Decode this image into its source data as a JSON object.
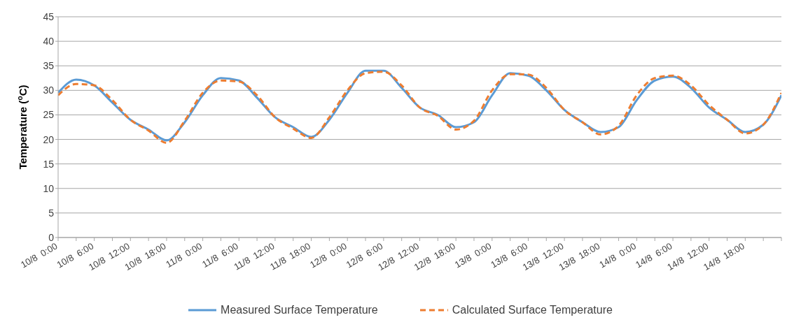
{
  "chart_data": {
    "type": "line",
    "ylabel": "Temperature ($^{o}$C)",
    "categories": [
      "10/8  0:00",
      null,
      "10/8  6:00",
      null,
      "10/8  12:00",
      null,
      "10/8  18:00",
      null,
      "11/8  0:00",
      null,
      "11/8  6:00",
      null,
      "11/8  12:00",
      null,
      "11/8  18:00",
      null,
      "12/8  0:00",
      null,
      "12/8  6:00",
      null,
      "12/8  12:00",
      null,
      "12/8  18:00",
      null,
      "13/8  0:00",
      null,
      "13/8  6:00",
      null,
      "13/8  12:00",
      null,
      "13/8  18:00",
      null,
      "14/8  0:00",
      null,
      "14/8  6:00",
      null,
      "14/8  12:00",
      null,
      "14/8  18:00",
      null,
      null
    ],
    "series": [
      {
        "name": "Measured Surface Temperature",
        "color": "#5b9bd5",
        "line_style": "solid",
        "values": [
          29.5,
          32.2,
          31,
          27.5,
          24,
          22,
          19.8,
          23.5,
          29,
          32.5,
          32,
          28.5,
          24.5,
          22.5,
          20.5,
          24,
          29.5,
          34,
          34,
          30.5,
          26.5,
          25,
          22.5,
          23.5,
          29,
          33.5,
          33,
          30,
          26,
          23.5,
          21.5,
          22.5,
          28,
          32,
          32.8,
          30.5,
          26.5,
          24,
          21.5,
          23,
          29
        ]
      },
      {
        "name": "Calculated Surface Temperature",
        "color": "#ed7d31",
        "line_style": "dashed",
        "values": [
          29,
          31.3,
          31,
          28,
          24,
          21.8,
          19.3,
          23.8,
          29.5,
          32,
          31.8,
          29,
          24.5,
          22.2,
          20.3,
          24.5,
          30,
          33.5,
          33.8,
          31,
          26.5,
          24.8,
          22,
          23.8,
          30,
          33.3,
          33.2,
          30.5,
          26,
          23.5,
          21,
          22.8,
          29,
          32.5,
          33,
          31,
          27,
          24,
          21.2,
          23,
          29.5
        ]
      }
    ],
    "ylim": [
      0,
      45
    ],
    "yticks": [
      0,
      5,
      10,
      15,
      20,
      25,
      30,
      35,
      40,
      45
    ],
    "grid": "y",
    "legend": "bottom",
    "marker": "none"
  }
}
